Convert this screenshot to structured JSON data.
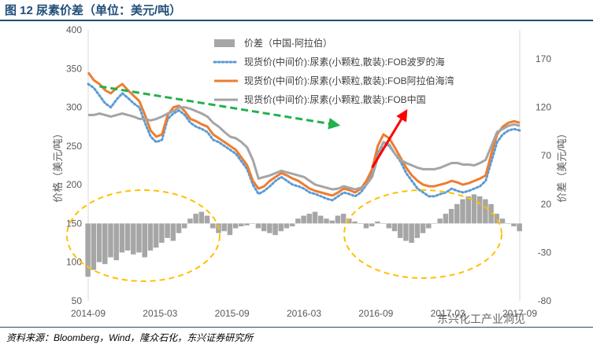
{
  "page": {
    "title": "图 12 尿素价差（单位：美元/吨）",
    "source": "资料来源：Bloomberg，Wind，隆众石化，东兴证券研究所",
    "watermark": "东兴化工产业洞见"
  },
  "chart_data": {
    "type": "line",
    "title": "",
    "ylabel": "价格（美元/吨）",
    "y2label": "价差（美元/吨）",
    "ylim": [
      50,
      400
    ],
    "y2lim": [
      -80,
      200
    ],
    "yticks": [
      50,
      100,
      150,
      200,
      250,
      300,
      350,
      400
    ],
    "y2ticks": [
      -80,
      -30,
      20,
      70,
      120,
      170
    ],
    "x_ticks": [
      "2014-09",
      "2015-03",
      "2015-09",
      "2016-03",
      "2016-09",
      "2017-03",
      "2017-09"
    ],
    "x_range": [
      0,
      38
    ],
    "grid": false,
    "legend_position": "top-center",
    "colors": {
      "spread": "#a6a6a6",
      "black_sea": "#5b9bd5",
      "arab_gulf": "#ed7d31",
      "china": "#a5a5a5",
      "trend_down": "#22b14c",
      "trend_up": "#ff0000",
      "ellipse": "#ffc000"
    },
    "series": [
      {
        "name": "价差（中国-阿拉伯）",
        "axis": "secondary",
        "style": "bar",
        "x": [
          0,
          0.5,
          1,
          1.5,
          2,
          2.5,
          3,
          3.5,
          4,
          4.5,
          5,
          5.5,
          6,
          6.5,
          7,
          7.5,
          8,
          8.5,
          9,
          9.5,
          10,
          10.5,
          11,
          11.5,
          12,
          12.5,
          13,
          13.5,
          14,
          14.5,
          15,
          15.5,
          16,
          16.5,
          17,
          17.5,
          18,
          18.5,
          19,
          19.5,
          20,
          20.5,
          21,
          21.5,
          22,
          22.5,
          23,
          23.5,
          24,
          24.5,
          25,
          25.5,
          26,
          26.5,
          27,
          27.5,
          28,
          28.5,
          29,
          29.5,
          30,
          30.5,
          31,
          31.5,
          32,
          32.5,
          33,
          33.5,
          34,
          34.5,
          35,
          35.5,
          36,
          36.5,
          37,
          37.5,
          38
        ],
        "values": [
          -55,
          -48,
          -40,
          -42,
          -35,
          -38,
          -30,
          -28,
          -32,
          -30,
          -35,
          -28,
          -25,
          -20,
          -15,
          -18,
          -10,
          -5,
          5,
          10,
          12,
          8,
          -5,
          -10,
          -8,
          -12,
          -5,
          -3,
          -2,
          0,
          -5,
          -8,
          -10,
          -12,
          -8,
          -5,
          -3,
          5,
          8,
          10,
          12,
          8,
          5,
          3,
          8,
          10,
          5,
          2,
          0,
          -5,
          -3,
          2,
          0,
          -5,
          -8,
          -15,
          -18,
          -20,
          -15,
          -10,
          -5,
          0,
          5,
          10,
          15,
          20,
          25,
          28,
          30,
          28,
          25,
          20,
          10,
          5,
          0,
          -3,
          -8
        ]
      },
      {
        "name": "现货价(中间价):尿素(小颗粒,散装):FOB波罗的海",
        "axis": "primary",
        "style": "dotted",
        "x": [
          0,
          0.5,
          1,
          1.5,
          2,
          2.5,
          3,
          3.5,
          4,
          4.5,
          5,
          5.5,
          6,
          6.5,
          7,
          7.5,
          8,
          8.5,
          9,
          9.5,
          10,
          10.5,
          11,
          11.5,
          12,
          12.5,
          13,
          13.5,
          14,
          14.5,
          15,
          15.5,
          16,
          16.5,
          17,
          17.5,
          18,
          18.5,
          19,
          19.5,
          20,
          20.5,
          21,
          21.5,
          22,
          22.5,
          23,
          23.5,
          24,
          24.5,
          25,
          25.5,
          26,
          26.5,
          27,
          27.5,
          28,
          28.5,
          29,
          29.5,
          30,
          30.5,
          31,
          31.5,
          32,
          32.5,
          33,
          33.5,
          34,
          34.5,
          35,
          35.5,
          36,
          36.5,
          37,
          37.5,
          38
        ],
        "values": [
          330,
          325,
          315,
          305,
          300,
          310,
          318,
          312,
          305,
          300,
          280,
          262,
          255,
          258,
          285,
          292,
          296,
          290,
          280,
          275,
          272,
          268,
          258,
          255,
          250,
          245,
          240,
          230,
          220,
          200,
          188,
          192,
          198,
          205,
          210,
          205,
          200,
          198,
          195,
          190,
          188,
          185,
          182,
          180,
          185,
          190,
          188,
          185,
          190,
          200,
          215,
          240,
          255,
          250,
          240,
          230,
          215,
          205,
          195,
          190,
          185,
          185,
          188,
          190,
          195,
          192,
          190,
          192,
          195,
          198,
          205,
          230,
          255,
          265,
          270,
          272,
          270
        ]
      },
      {
        "name": "现货价(中间价):尿素(小颗粒,散装):FOB阿拉伯海湾",
        "axis": "primary",
        "style": "solid",
        "x": [
          0,
          0.5,
          1,
          1.5,
          2,
          2.5,
          3,
          3.5,
          4,
          4.5,
          5,
          5.5,
          6,
          6.5,
          7,
          7.5,
          8,
          8.5,
          9,
          9.5,
          10,
          10.5,
          11,
          11.5,
          12,
          12.5,
          13,
          13.5,
          14,
          14.5,
          15,
          15.5,
          16,
          16.5,
          17,
          17.5,
          18,
          18.5,
          19,
          19.5,
          20,
          20.5,
          21,
          21.5,
          22,
          22.5,
          23,
          23.5,
          24,
          24.5,
          25,
          25.5,
          26,
          26.5,
          27,
          27.5,
          28,
          28.5,
          29,
          29.5,
          30,
          30.5,
          31,
          31.5,
          32,
          32.5,
          33,
          33.5,
          34,
          34.5,
          35,
          35.5,
          36,
          36.5,
          37,
          37.5,
          38
        ],
        "values": [
          345,
          335,
          330,
          322,
          318,
          325,
          330,
          322,
          315,
          308,
          290,
          270,
          262,
          265,
          290,
          300,
          302,
          295,
          285,
          282,
          278,
          275,
          265,
          260,
          255,
          250,
          245,
          235,
          225,
          205,
          195,
          198,
          205,
          210,
          215,
          212,
          208,
          205,
          200,
          195,
          192,
          190,
          188,
          186,
          190,
          195,
          193,
          190,
          195,
          205,
          220,
          250,
          265,
          260,
          248,
          235,
          222,
          212,
          205,
          200,
          198,
          198,
          200,
          202,
          205,
          203,
          200,
          202,
          205,
          208,
          212,
          240,
          265,
          275,
          280,
          282,
          280
        ]
      },
      {
        "name": "现货价(中间价):尿素(小颗粒,散装):FOB中国",
        "axis": "primary",
        "style": "solid",
        "x": [
          0,
          0.5,
          1,
          1.5,
          2,
          2.5,
          3,
          3.5,
          4,
          4.5,
          5,
          5.5,
          6,
          6.5,
          7,
          7.5,
          8,
          8.5,
          9,
          9.5,
          10,
          10.5,
          11,
          11.5,
          12,
          12.5,
          13,
          13.5,
          14,
          14.5,
          15,
          15.5,
          16,
          16.5,
          17,
          17.5,
          18,
          18.5,
          19,
          19.5,
          20,
          20.5,
          21,
          21.5,
          22,
          22.5,
          23,
          23.5,
          24,
          24.5,
          25,
          25.5,
          26,
          26.5,
          27,
          27.5,
          28,
          28.5,
          29,
          29.5,
          30,
          30.5,
          31,
          31.5,
          32,
          32.5,
          33,
          33.5,
          34,
          34.5,
          35,
          35.5,
          36,
          36.5,
          37,
          37.5,
          38
        ],
        "values": [
          290,
          290,
          292,
          290,
          288,
          290,
          292,
          290,
          288,
          285,
          285,
          283,
          285,
          288,
          292,
          295,
          300,
          300,
          298,
          295,
          292,
          288,
          280,
          275,
          268,
          262,
          260,
          255,
          248,
          232,
          208,
          210,
          212,
          215,
          218,
          216,
          214,
          212,
          210,
          205,
          200,
          198,
          196,
          194,
          195,
          198,
          196,
          194,
          196,
          200,
          210,
          235,
          255,
          252,
          240,
          232,
          228,
          225,
          222,
          220,
          220,
          220,
          222,
          225,
          228,
          228,
          226,
          226,
          225,
          228,
          232,
          250,
          268,
          272,
          276,
          278,
          276
        ]
      }
    ],
    "annotations": [
      {
        "type": "arrow",
        "label": "",
        "from": [
          1,
          327
        ],
        "to": [
          22,
          277
        ]
      },
      {
        "type": "arrow",
        "label": "",
        "from": [
          25,
          222
        ],
        "to": [
          28,
          295
        ]
      }
    ]
  }
}
